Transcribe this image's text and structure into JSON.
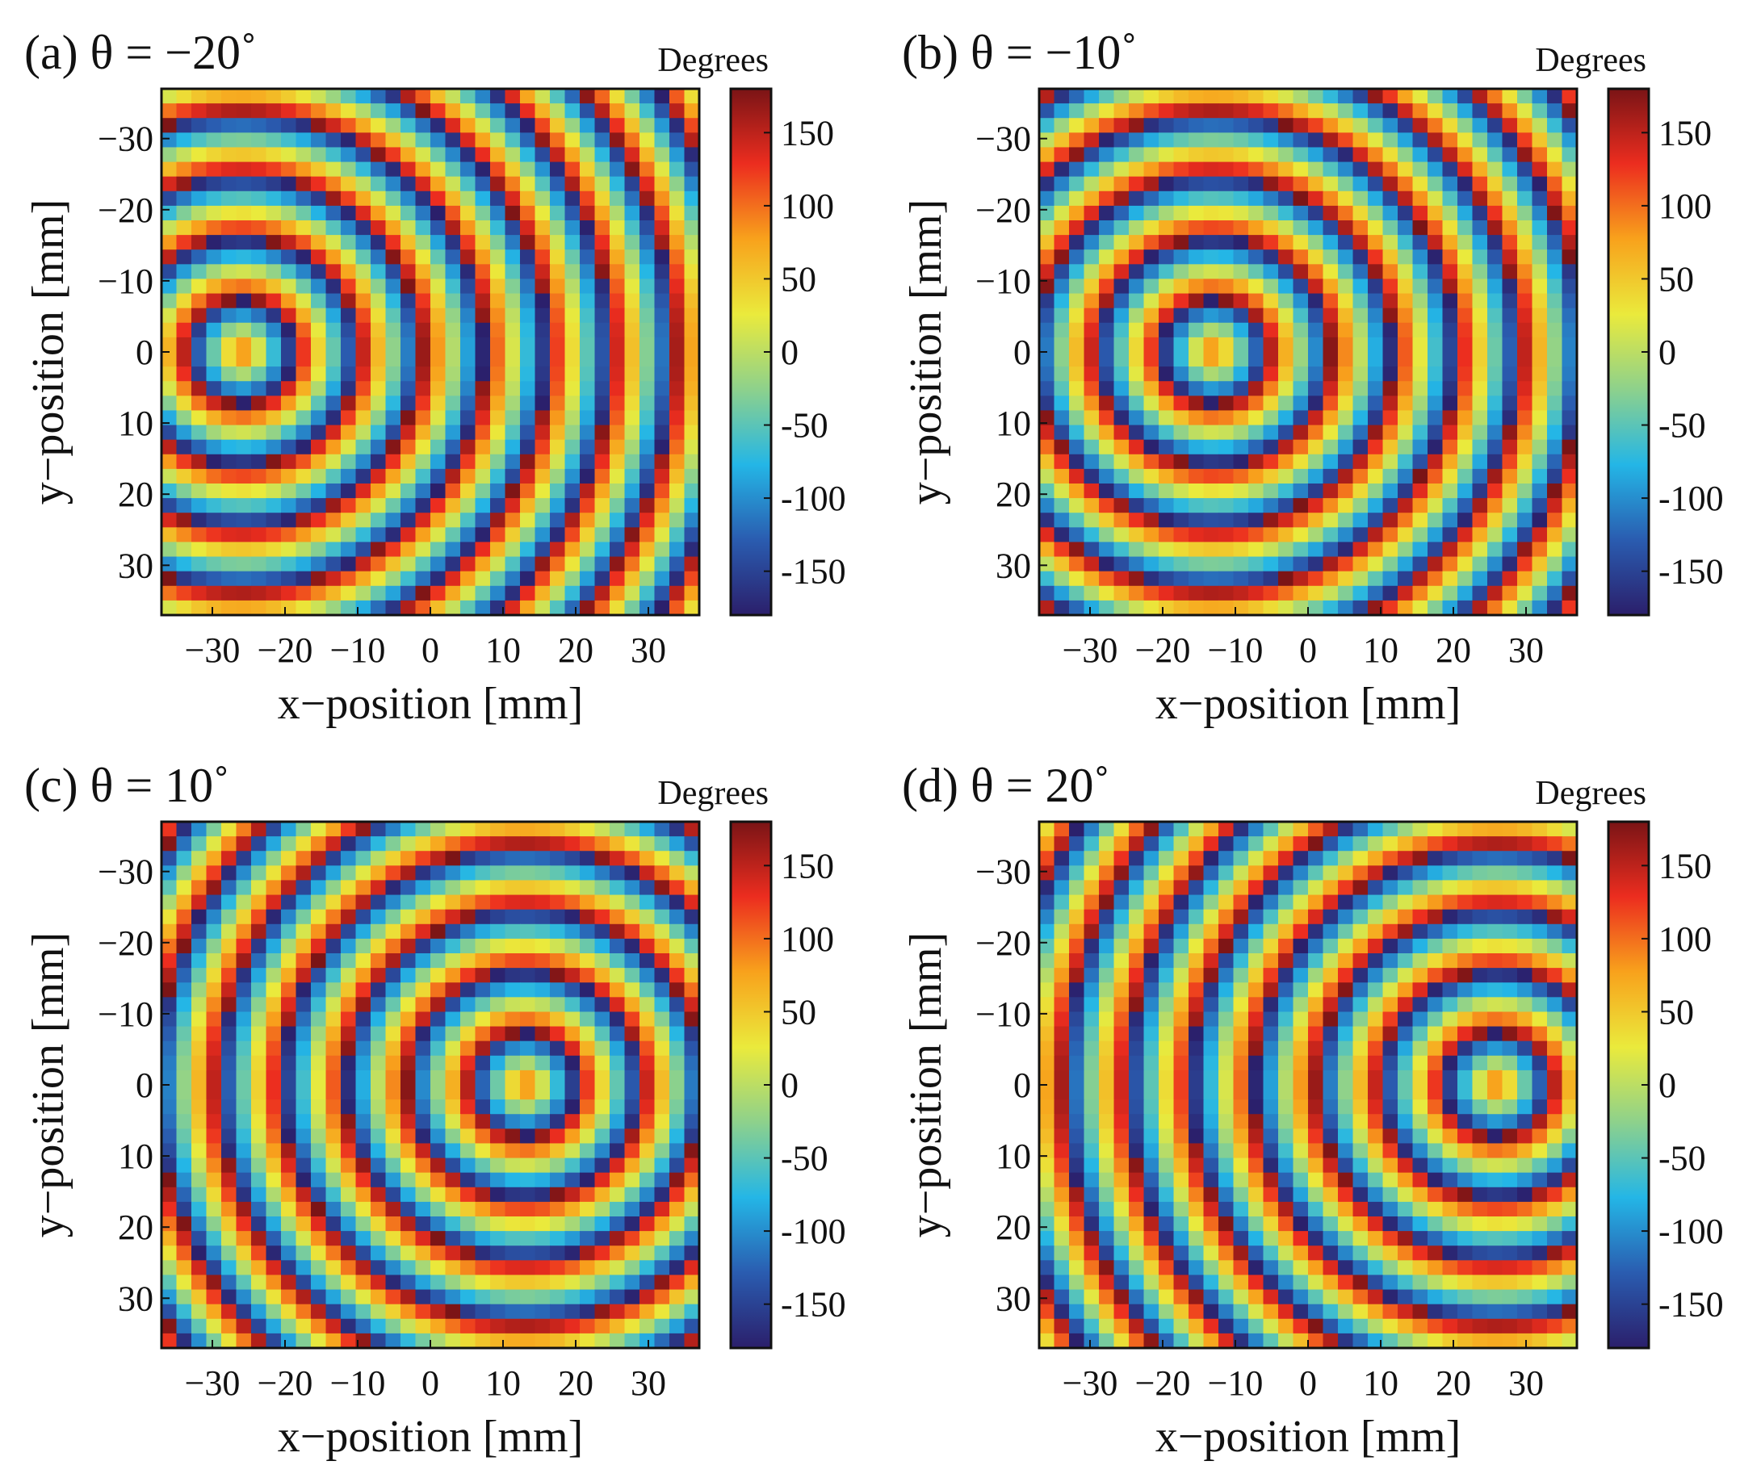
{
  "figure": {
    "xlabel": "x−position [mm]",
    "ylabel": "y−position [mm]",
    "colorbar_label": "Degrees"
  },
  "colormap": [
    "#2b1f6b",
    "#2a5cb0",
    "#24b6e6",
    "#8dd18c",
    "#eaea3c",
    "#f8a21c",
    "#ec2d1f",
    "#7a1416"
  ],
  "chart_data": [
    {
      "type": "heatmap",
      "panel": "a",
      "title": "(a) θ = −20˚",
      "steering_angle_deg": -20,
      "focus_mm": [
        -26,
        0
      ],
      "grid_size": 36,
      "xlim": [
        -37,
        37
      ],
      "ylim": [
        -37,
        37
      ],
      "xticks": [
        -30,
        -20,
        -10,
        0,
        10,
        20,
        30
      ],
      "xtick_labels": [
        "−30",
        "−20",
        "−10",
        "0",
        "10",
        "20",
        "30"
      ],
      "yticks": [
        -30,
        -20,
        -10,
        0,
        10,
        20,
        30
      ],
      "ytick_labels": [
        "−30",
        "−20",
        "−10",
        "0",
        "10",
        "20",
        "30"
      ],
      "colorbar": {
        "range": [
          -180,
          180
        ],
        "ticks": [
          150,
          100,
          50,
          0,
          -50,
          -100,
          -150
        ],
        "tick_labels": [
          "150",
          "100",
          "50",
          "0",
          "-50",
          "-100",
          "-150"
        ],
        "label": "Degrees"
      }
    },
    {
      "type": "heatmap",
      "panel": "b",
      "title": "(b)  θ = −10˚",
      "steering_angle_deg": -10,
      "focus_mm": [
        -13,
        0
      ],
      "grid_size": 36,
      "xlim": [
        -37,
        37
      ],
      "ylim": [
        -37,
        37
      ],
      "xticks": [
        -30,
        -20,
        -10,
        0,
        10,
        20,
        30
      ],
      "xtick_labels": [
        "−30",
        "−20",
        "−10",
        "0",
        "10",
        "20",
        "30"
      ],
      "yticks": [
        -30,
        -20,
        -10,
        0,
        10,
        20,
        30
      ],
      "ytick_labels": [
        "−30",
        "−20",
        "−10",
        "0",
        "10",
        "20",
        "30"
      ],
      "colorbar": {
        "range": [
          -180,
          180
        ],
        "ticks": [
          150,
          100,
          50,
          0,
          -50,
          -100,
          -150
        ],
        "tick_labels": [
          "150",
          "100",
          "50",
          "0",
          "-50",
          "-100",
          "-150"
        ],
        "label": "Degrees"
      }
    },
    {
      "type": "heatmap",
      "panel": "c",
      "title": "(c)  θ = 10˚",
      "steering_angle_deg": 10,
      "focus_mm": [
        13,
        0
      ],
      "grid_size": 36,
      "xlim": [
        -37,
        37
      ],
      "ylim": [
        -37,
        37
      ],
      "xticks": [
        -30,
        -20,
        -10,
        0,
        10,
        20,
        30
      ],
      "xtick_labels": [
        "−30",
        "−20",
        "−10",
        "0",
        "10",
        "20",
        "30"
      ],
      "yticks": [
        -30,
        -20,
        -10,
        0,
        10,
        20,
        30
      ],
      "ytick_labels": [
        "−30",
        "−20",
        "−10",
        "0",
        "10",
        "20",
        "30"
      ],
      "colorbar": {
        "range": [
          -180,
          180
        ],
        "ticks": [
          150,
          100,
          50,
          0,
          -50,
          -100,
          -150
        ],
        "tick_labels": [
          "150",
          "100",
          "50",
          "0",
          "-50",
          "-100",
          "-150"
        ],
        "label": "Degrees"
      }
    },
    {
      "type": "heatmap",
      "panel": "d",
      "title": "(d)  θ = 20˚",
      "steering_angle_deg": 20,
      "focus_mm": [
        26,
        0
      ],
      "grid_size": 36,
      "xlim": [
        -37,
        37
      ],
      "ylim": [
        -37,
        37
      ],
      "xticks": [
        -30,
        -20,
        -10,
        0,
        10,
        20,
        30
      ],
      "xtick_labels": [
        "−30",
        "−20",
        "−10",
        "0",
        "10",
        "20",
        "30"
      ],
      "yticks": [
        -30,
        -20,
        -10,
        0,
        10,
        20,
        30
      ],
      "ytick_labels": [
        "−30",
        "−20",
        "−10",
        "0",
        "10",
        "20",
        "30"
      ],
      "colorbar": {
        "range": [
          -180,
          180
        ],
        "ticks": [
          150,
          100,
          50,
          0,
          -50,
          -100,
          -150
        ],
        "tick_labels": [
          "150",
          "100",
          "50",
          "0",
          "-50",
          "-100",
          "-150"
        ],
        "label": "Degrees"
      }
    }
  ]
}
